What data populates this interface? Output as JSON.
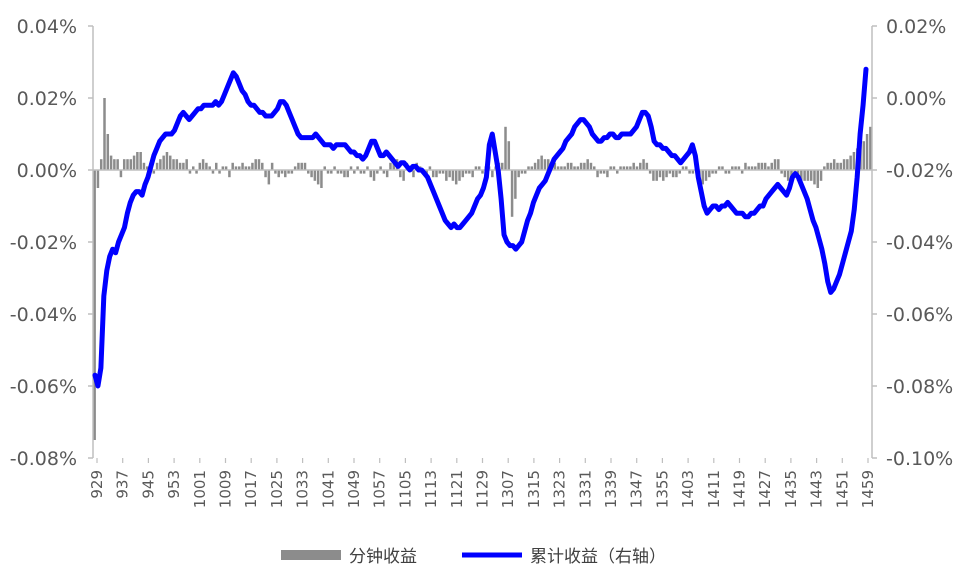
{
  "chart_data": {
    "type": "bar+line",
    "title": "",
    "left_axis": {
      "ylim": [
        -0.08,
        0.04
      ],
      "ticks": [
        0.04,
        0.02,
        0.0,
        -0.02,
        -0.04,
        -0.06,
        -0.08
      ],
      "tick_labels": [
        "0.04%",
        "0.02%",
        "0.00%",
        "-0.02%",
        "-0.04%",
        "-0.06%",
        "-0.08%"
      ]
    },
    "right_axis": {
      "ylim": [
        -0.1,
        0.02
      ],
      "ticks": [
        0.02,
        0.0,
        -0.02,
        -0.04,
        -0.06,
        -0.08,
        -0.1
      ],
      "tick_labels": [
        "0.02%",
        "0.00%",
        "-0.02%",
        "-0.04%",
        "-0.06%",
        "-0.08%",
        "-0.10%"
      ]
    },
    "x_axis": {
      "tick_labels": [
        "929",
        "937",
        "945",
        "953",
        "1001",
        "1009",
        "1017",
        "1025",
        "1033",
        "1041",
        "1049",
        "1057",
        "1105",
        "1113",
        "1121",
        "1129",
        "1307",
        "1315",
        "1323",
        "1331",
        "1339",
        "1347",
        "1355",
        "1403",
        "1411",
        "1419",
        "1427",
        "1435",
        "1443",
        "1451",
        "1459"
      ]
    },
    "grid": false,
    "legend_position": "bottom",
    "series": [
      {
        "name": "分钟收益",
        "kind": "bar",
        "axis": "left",
        "color": "#8c8c8c",
        "values": [
          -0.075,
          -0.005,
          0.003,
          0.02,
          0.01,
          0.004,
          0.003,
          0.003,
          -0.002,
          0.003,
          0.003,
          0.003,
          0.004,
          0.005,
          0.005,
          0.002,
          0.001,
          0.002,
          -0.001,
          0.002,
          0.003,
          0.004,
          0.005,
          0.004,
          0.003,
          0.003,
          0.002,
          0.002,
          0.003,
          -0.001,
          0.001,
          -0.001,
          0.002,
          0.003,
          0.002,
          0.001,
          -0.001,
          0.002,
          -0.001,
          0.001,
          0.001,
          -0.002,
          0.002,
          0.001,
          0.001,
          0.002,
          0.001,
          0.001,
          0.002,
          0.003,
          0.003,
          0.002,
          -0.002,
          -0.004,
          0.002,
          -0.001,
          -0.002,
          -0.001,
          -0.002,
          -0.001,
          -0.001,
          0.001,
          0.002,
          0.002,
          0.002,
          -0.001,
          -0.002,
          -0.003,
          -0.004,
          -0.005,
          0.001,
          -0.001,
          -0.001,
          0.001,
          -0.001,
          -0.001,
          -0.002,
          -0.002,
          0.001,
          -0.001,
          0.001,
          -0.001,
          -0.001,
          0.001,
          -0.002,
          -0.003,
          -0.001,
          0.001,
          -0.001,
          -0.002,
          0.002,
          0.002,
          0.003,
          -0.002,
          -0.003,
          0.002,
          0.001,
          -0.002,
          0.002,
          0.001,
          -0.001,
          -0.002,
          0.001,
          -0.002,
          -0.002,
          -0.001,
          -0.001,
          -0.003,
          -0.002,
          -0.003,
          -0.004,
          -0.003,
          -0.002,
          -0.001,
          -0.001,
          -0.002,
          0.001,
          0.001,
          -0.001,
          0.001,
          0.001,
          -0.002,
          0.001,
          0.002,
          0.002,
          0.012,
          0.008,
          -0.013,
          -0.008,
          -0.002,
          -0.001,
          -0.001,
          0.001,
          0.001,
          0.002,
          0.003,
          0.004,
          0.003,
          0.003,
          0.002,
          0.002,
          0.001,
          0.001,
          0.001,
          0.002,
          0.002,
          0.001,
          0.001,
          0.002,
          0.002,
          0.003,
          0.002,
          0.001,
          -0.002,
          -0.001,
          -0.001,
          -0.002,
          0.001,
          0.001,
          -0.001,
          0.001,
          0.001,
          0.001,
          0.001,
          0.002,
          0.001,
          0.002,
          0.003,
          0.002,
          -0.001,
          -0.003,
          -0.003,
          -0.002,
          -0.003,
          -0.002,
          -0.001,
          -0.002,
          -0.002,
          -0.001,
          0.001,
          0.001,
          -0.001,
          -0.001,
          0.002,
          -0.002,
          -0.004,
          -0.003,
          -0.002,
          -0.001,
          -0.001,
          0.001,
          0.001,
          -0.001,
          -0.001,
          0.001,
          0.001,
          0.001,
          -0.001,
          0.002,
          0.001,
          0.001,
          0.001,
          0.002,
          0.002,
          0.002,
          0.001,
          0.002,
          0.003,
          0.003,
          -0.001,
          -0.002,
          -0.003,
          -0.003,
          -0.002,
          -0.003,
          -0.003,
          -0.003,
          -0.003,
          -0.003,
          -0.004,
          -0.005,
          -0.003,
          0.001,
          0.002,
          0.002,
          0.003,
          0.002,
          0.002,
          0.003,
          0.003,
          0.004,
          0.005,
          0.006,
          0.007,
          0.008,
          0.01,
          0.012
        ]
      },
      {
        "name": "累计收益（右轴）",
        "kind": "line",
        "axis": "right",
        "color": "#0000ff",
        "values": [
          -0.077,
          -0.08,
          -0.075,
          -0.055,
          -0.048,
          -0.044,
          -0.042,
          -0.043,
          -0.04,
          -0.038,
          -0.036,
          -0.032,
          -0.029,
          -0.027,
          -0.026,
          -0.026,
          -0.027,
          -0.024,
          -0.022,
          -0.019,
          -0.016,
          -0.014,
          -0.012,
          -0.011,
          -0.01,
          -0.01,
          -0.01,
          -0.009,
          -0.007,
          -0.005,
          -0.004,
          -0.005,
          -0.006,
          -0.005,
          -0.004,
          -0.003,
          -0.003,
          -0.002,
          -0.002,
          -0.002,
          -0.002,
          -0.001,
          -0.002,
          -0.001,
          0.001,
          0.003,
          0.005,
          0.007,
          0.006,
          0.004,
          0.002,
          0.001,
          -0.001,
          -0.002,
          -0.002,
          -0.003,
          -0.004,
          -0.004,
          -0.005,
          -0.005,
          -0.005,
          -0.004,
          -0.003,
          -0.001,
          -0.001,
          -0.002,
          -0.004,
          -0.006,
          -0.008,
          -0.01,
          -0.011,
          -0.011,
          -0.011,
          -0.011,
          -0.011,
          -0.01,
          -0.011,
          -0.012,
          -0.013,
          -0.013,
          -0.013,
          -0.014,
          -0.013,
          -0.013,
          -0.013,
          -0.013,
          -0.014,
          -0.015,
          -0.015,
          -0.016,
          -0.016,
          -0.017,
          -0.016,
          -0.014,
          -0.012,
          -0.012,
          -0.014,
          -0.016,
          -0.016,
          -0.015,
          -0.016,
          -0.017,
          -0.018,
          -0.019,
          -0.018,
          -0.018,
          -0.019,
          -0.02,
          -0.019,
          -0.019,
          -0.02,
          -0.02,
          -0.021,
          -0.022,
          -0.024,
          -0.026,
          -0.028,
          -0.03,
          -0.032,
          -0.034,
          -0.035,
          -0.036,
          -0.035,
          -0.036,
          -0.036,
          -0.035,
          -0.034,
          -0.033,
          -0.032,
          -0.03,
          -0.028,
          -0.027,
          -0.025,
          -0.022,
          -0.013,
          -0.01,
          -0.015,
          -0.02,
          -0.028,
          -0.038,
          -0.04,
          -0.041,
          -0.041,
          -0.042,
          -0.041,
          -0.04,
          -0.037,
          -0.034,
          -0.032,
          -0.029,
          -0.027,
          -0.025,
          -0.024,
          -0.023,
          -0.021,
          -0.019,
          -0.017,
          -0.016,
          -0.015,
          -0.014,
          -0.012,
          -0.011,
          -0.01,
          -0.008,
          -0.007,
          -0.006,
          -0.006,
          -0.007,
          -0.008,
          -0.01,
          -0.011,
          -0.012,
          -0.012,
          -0.011,
          -0.011,
          -0.01,
          -0.01,
          -0.011,
          -0.011,
          -0.01,
          -0.01,
          -0.01,
          -0.01,
          -0.009,
          -0.008,
          -0.006,
          -0.004,
          -0.004,
          -0.005,
          -0.008,
          -0.012,
          -0.013,
          -0.013,
          -0.014,
          -0.014,
          -0.015,
          -0.016,
          -0.016,
          -0.017,
          -0.018,
          -0.017,
          -0.016,
          -0.015,
          -0.013,
          -0.016,
          -0.022,
          -0.026,
          -0.03,
          -0.032,
          -0.031,
          -0.03,
          -0.03,
          -0.031,
          -0.03,
          -0.03,
          -0.029,
          -0.03,
          -0.031,
          -0.032,
          -0.032,
          -0.032,
          -0.033,
          -0.033,
          -0.032,
          -0.032,
          -0.031,
          -0.03,
          -0.03,
          -0.028,
          -0.027,
          -0.026,
          -0.025,
          -0.024,
          -0.025,
          -0.026,
          -0.027,
          -0.025,
          -0.022,
          -0.021,
          -0.022,
          -0.024,
          -0.026,
          -0.028,
          -0.031,
          -0.034,
          -0.036,
          -0.039,
          -0.042,
          -0.046,
          -0.051,
          -0.054,
          -0.053,
          -0.051,
          -0.049,
          -0.046,
          -0.043,
          -0.04,
          -0.037,
          -0.031,
          -0.022,
          -0.01,
          -0.002,
          0.008
        ]
      }
    ]
  },
  "legend": {
    "bar_label": "分钟收益",
    "line_label": "累计收益（右轴）"
  }
}
